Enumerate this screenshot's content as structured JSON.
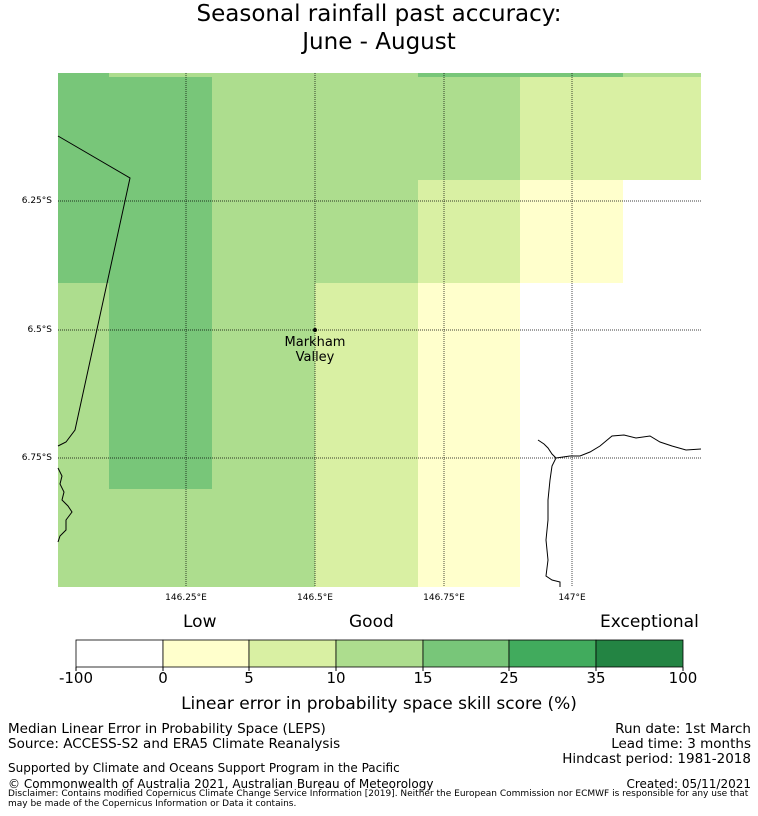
{
  "title": {
    "line1": "Seasonal rainfall past accuracy:",
    "line2": "June - August"
  },
  "map": {
    "site_label_line1": "Markham",
    "site_label_line2": "Valley",
    "lon_ticks": [
      "146.25°E",
      "146.5°E",
      "146.75°E",
      "147°E"
    ],
    "lat_ticks": [
      "6.25°S",
      "6.5°S",
      "6.75°S"
    ],
    "colors": {
      "white": "#ffffff",
      "c0_5": "#ffffcc",
      "c5_10": "#d9f0a3",
      "c10_15": "#addd8e",
      "c15_25": "#78c679",
      "c25_35": "#41ab5d",
      "c35_100": "#238443"
    }
  },
  "legend": {
    "categories": {
      "low": "Low",
      "good": "Good",
      "exceptional": "Exceptional"
    },
    "labels": [
      "-100",
      "0",
      "5",
      "10",
      "15",
      "25",
      "35",
      "100"
    ],
    "title": "Linear error in probability space skill score (%)"
  },
  "footer": {
    "left1": "Median Linear Error in Probability Space (LEPS)",
    "left2": "Source: ACCESS-S2 and ERA5 Climate Reanalysis",
    "right1": "Run date: 1st March",
    "right2": "Lead time: 3 months",
    "right3": "Hindcast period: 1981-2018",
    "support": "Supported by Climate and Oceans Support Program in the Pacific",
    "copyright": "© Commonwealth of Australia 2021, Australian Bureau of Meteorology",
    "created": "Created: 05/11/2021",
    "disclaimer": "Disclaimer: Contains modified Copernicus Climate Change Service Information [2019]. Neither the European Commission nor ECMWF is responsible for any use that may be made of the Copernicus Information or Data it contains."
  }
}
